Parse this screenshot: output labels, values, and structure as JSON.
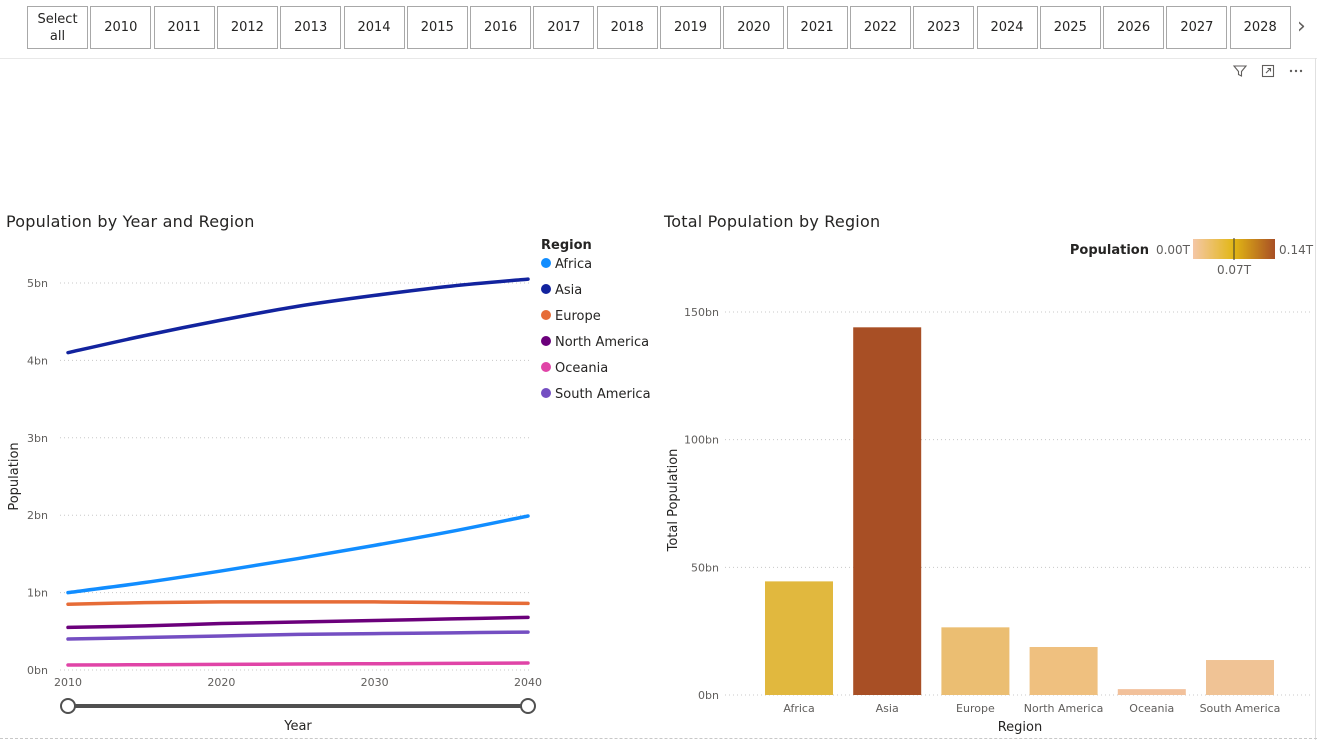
{
  "slicer": {
    "select_all": "Select all",
    "years": [
      "2010",
      "2011",
      "2012",
      "2013",
      "2014",
      "2015",
      "2016",
      "2017",
      "2018",
      "2019",
      "2020",
      "2021",
      "2022",
      "2023",
      "2024",
      "2025",
      "2026",
      "2027",
      "2028"
    ]
  },
  "chart_data": [
    {
      "type": "line",
      "title": "Population by Year and Region",
      "xlabel": "Year",
      "ylabel": "Population",
      "x_ticks": [
        "2010",
        "2020",
        "2030",
        "2040"
      ],
      "y_ticks": [
        "0bn",
        "1bn",
        "2bn",
        "3bn",
        "4bn",
        "5bn"
      ],
      "xlim": [
        2010,
        2040
      ],
      "ylim": [
        0,
        5
      ],
      "grid": true,
      "legend_title": "Region",
      "legend_position": "top-right",
      "x": [
        2010,
        2015,
        2020,
        2025,
        2030,
        2035,
        2040
      ],
      "series": [
        {
          "name": "Africa",
          "color": "#118dff",
          "values": [
            1.0,
            1.13,
            1.28,
            1.44,
            1.61,
            1.79,
            1.99
          ]
        },
        {
          "name": "Asia",
          "color": "#12239e",
          "values": [
            4.1,
            4.32,
            4.52,
            4.7,
            4.84,
            4.96,
            5.05
          ]
        },
        {
          "name": "Europe",
          "color": "#e66c37",
          "values": [
            0.85,
            0.87,
            0.88,
            0.88,
            0.88,
            0.87,
            0.86
          ]
        },
        {
          "name": "North America",
          "color": "#6b007b",
          "values": [
            0.55,
            0.57,
            0.6,
            0.62,
            0.64,
            0.66,
            0.68
          ]
        },
        {
          "name": "Oceania",
          "color": "#e044a7",
          "values": [
            0.065,
            0.068,
            0.072,
            0.077,
            0.081,
            0.085,
            0.09
          ]
        },
        {
          "name": "South America",
          "color": "#744ec2",
          "values": [
            0.4,
            0.42,
            0.44,
            0.46,
            0.47,
            0.48,
            0.49
          ]
        }
      ]
    },
    {
      "type": "bar",
      "title": "Total Population by Region",
      "xlabel": "Region",
      "ylabel": "Total Population",
      "categories": [
        "Africa",
        "Asia",
        "Europe",
        "North America",
        "Oceania",
        "South America"
      ],
      "values": [
        44.5,
        144,
        26.5,
        18.8,
        2.3,
        13.7
      ],
      "colors": [
        "#e1b83e",
        "#a84f25",
        "#ebbe72",
        "#efc07f",
        "#f2c19b",
        "#f0c395"
      ],
      "y_ticks": [
        "0bn",
        "50bn",
        "100bn",
        "150bn"
      ],
      "ylim": [
        0,
        150
      ],
      "grid": true,
      "legend": {
        "title": "Population",
        "min": "0.00T",
        "mid": "0.07T",
        "max": "0.14T",
        "colors": [
          "#f4c7a7",
          "#e2b714",
          "#a84f25"
        ]
      }
    }
  ]
}
